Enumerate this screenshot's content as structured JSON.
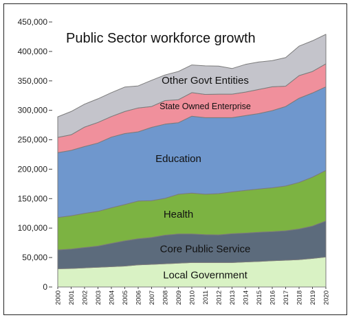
{
  "chart_data": {
    "type": "area",
    "stacked": true,
    "title": "Public Sector workforce growth",
    "xlabel": "",
    "ylabel": "",
    "ylim": [
      0,
      450000
    ],
    "yticks": [
      0,
      50000,
      100000,
      150000,
      200000,
      250000,
      300000,
      350000,
      400000,
      450000
    ],
    "ytick_labels": [
      "0",
      "50,000",
      "100,000",
      "150,000",
      "200,000",
      "250,000",
      "300,000",
      "350,000",
      "400,000",
      "450,000"
    ],
    "x": [
      "2000",
      "2001",
      "2002",
      "2003",
      "2004",
      "2005",
      "2006",
      "2007",
      "2008",
      "2009",
      "2010",
      "2011",
      "2012",
      "2013",
      "2014",
      "2015",
      "2016",
      "2017",
      "2018",
      "2019",
      "2020"
    ],
    "grid": false,
    "legend": "none; labels placed inside areas",
    "series": [
      {
        "name": "Local Government",
        "color": "#d9f2c4",
        "values": [
          31000,
          31500,
          32500,
          33500,
          34500,
          35500,
          37500,
          38500,
          39500,
          40500,
          41500,
          41500,
          41500,
          41500,
          42500,
          43500,
          44500,
          45500,
          46500,
          48500,
          51000
        ]
      },
      {
        "name": "Core Public Service",
        "color": "#5c6b7c",
        "values": [
          32000,
          33000,
          34500,
          36000,
          39500,
          43000,
          44500,
          45500,
          48500,
          49500,
          48500,
          47500,
          47000,
          49000,
          49000,
          49500,
          49500,
          50000,
          52000,
          55000,
          61000
        ]
      },
      {
        "name": "Health",
        "color": "#7cb342",
        "values": [
          55000,
          56500,
          58000,
          59000,
          60500,
          61500,
          64000,
          62500,
          62500,
          67500,
          69500,
          68500,
          70000,
          71000,
          72500,
          73500,
          74500,
          76000,
          79000,
          83000,
          86000
        ]
      },
      {
        "name": "Education",
        "color": "#6f97cd",
        "values": [
          110000,
          111000,
          113500,
          116000,
          120000,
          120500,
          117500,
          124500,
          126000,
          121500,
          130500,
          130000,
          129000,
          126000,
          127000,
          128000,
          131000,
          135000,
          143000,
          143000,
          142000
        ]
      },
      {
        "name": "State Owned Enterprise",
        "color": "#f0909c",
        "values": [
          26000,
          26500,
          33000,
          35000,
          35000,
          37500,
          40500,
          35500,
          40000,
          39000,
          40000,
          39500,
          40000,
          40000,
          40000,
          41000,
          40500,
          34500,
          38500,
          36500,
          39000
        ]
      },
      {
        "name": "Other Govt Entities",
        "color": "#c4c4cb",
        "values": [
          35000,
          39500,
          39000,
          40000,
          40500,
          41500,
          37500,
          44500,
          43500,
          48000,
          47000,
          48500,
          47500,
          43500,
          47000,
          46500,
          44500,
          48500,
          50000,
          52000,
          50000
        ]
      }
    ]
  }
}
